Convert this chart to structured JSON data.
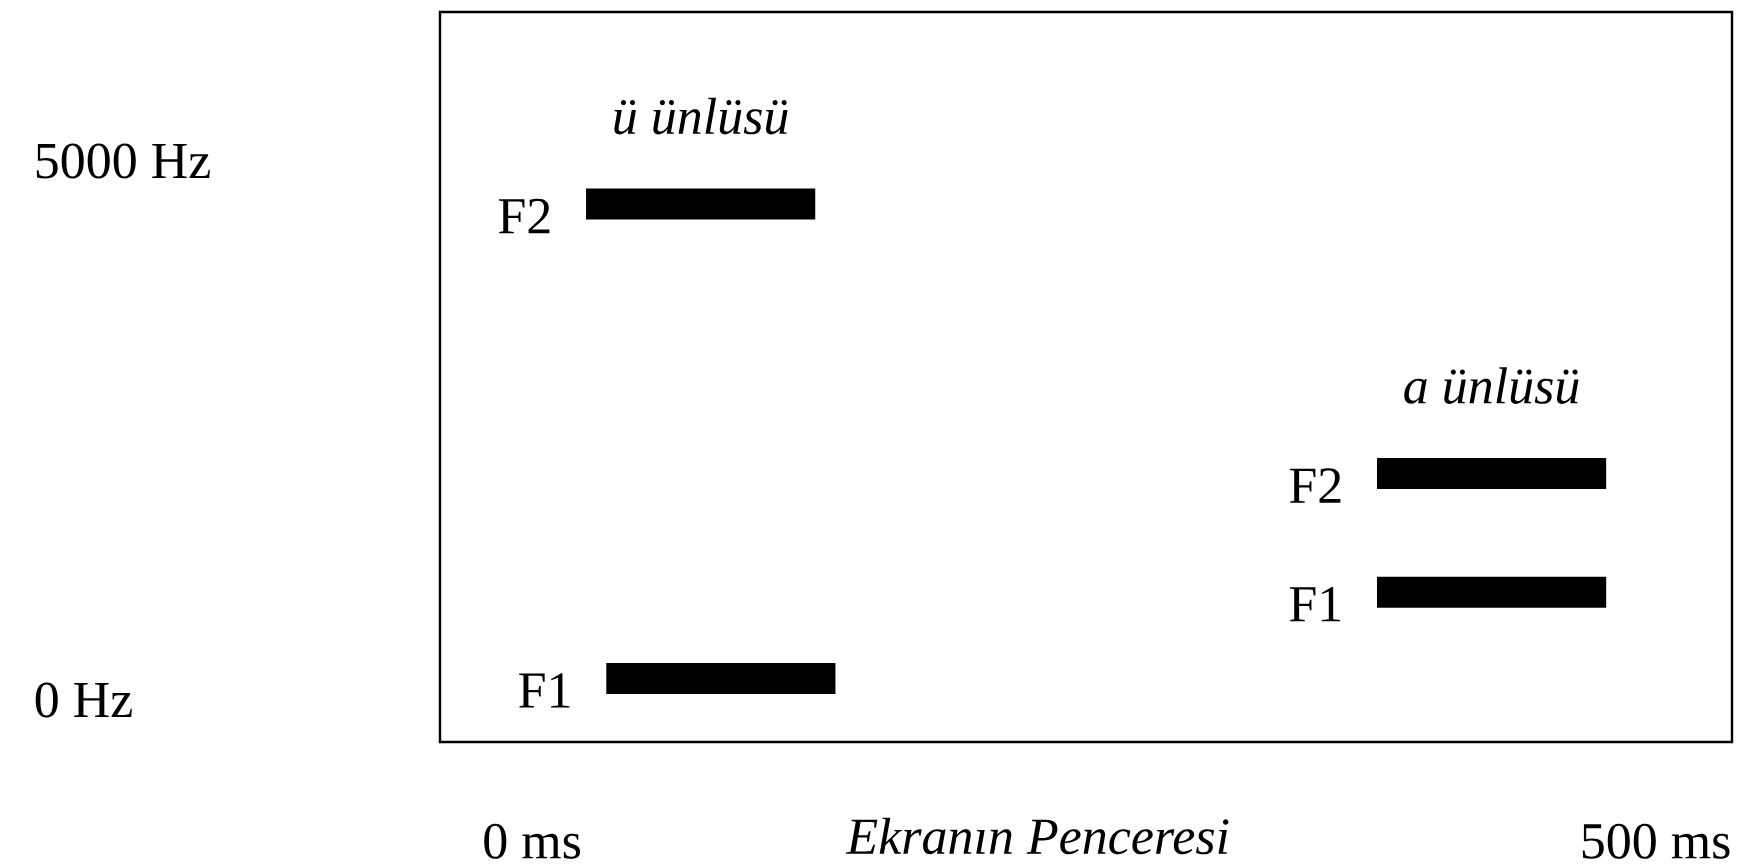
{
  "chart_data": {
    "type": "line",
    "xlabel": "*Ekranın  Penceresi*",
    "xlim": [
      -41,
      534
    ],
    "ylim": [
      -390,
      6382
    ],
    "xticks": [
      {
        "value": 0,
        "label": "0 ms"
      },
      {
        "value": 500,
        "label": "500 ms"
      }
    ],
    "yticks": [
      {
        "value": 0,
        "label": "0 Hz"
      },
      {
        "value": 5000,
        "label": "5000 Hz"
      }
    ],
    "series": [
      {
        "name": "F2",
        "color": "#000000",
        "x": [
          24,
          126
        ],
        "values": [
          4600,
          4600
        ]
      },
      {
        "name": "F1",
        "color": "#000000",
        "x": [
          33,
          135
        ],
        "values": [
          200,
          200
        ]
      },
      {
        "name": "F2",
        "color": "#000000",
        "x": [
          376,
          478
        ],
        "values": [
          2100,
          2100
        ]
      },
      {
        "name": "F1",
        "color": "#000000",
        "x": [
          376,
          478
        ],
        "values": [
          1000,
          1000
        ]
      }
    ],
    "annotations": [
      "*ü  ünlüsü*",
      "*a ünlüsü*"
    ]
  }
}
